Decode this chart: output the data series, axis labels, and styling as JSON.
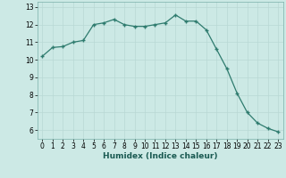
{
  "xlabel": "Humidex (Indice chaleur)",
  "x": [
    0,
    1,
    2,
    3,
    4,
    5,
    6,
    7,
    8,
    9,
    10,
    11,
    12,
    13,
    14,
    15,
    16,
    17,
    18,
    19,
    20,
    21,
    22,
    23
  ],
  "y": [
    10.2,
    10.7,
    10.75,
    11.0,
    11.1,
    12.0,
    12.1,
    12.3,
    12.0,
    11.9,
    11.9,
    12.0,
    12.1,
    12.55,
    12.2,
    12.2,
    11.7,
    10.6,
    9.5,
    8.1,
    7.0,
    6.4,
    6.1,
    5.9
  ],
  "ylim": [
    5.5,
    13.3
  ],
  "yticks": [
    6,
    7,
    8,
    9,
    10,
    11,
    12,
    13
  ],
  "xticks": [
    0,
    1,
    2,
    3,
    4,
    5,
    6,
    7,
    8,
    9,
    10,
    11,
    12,
    13,
    14,
    15,
    16,
    17,
    18,
    19,
    20,
    21,
    22,
    23
  ],
  "line_color": "#2e7b6e",
  "bg_color": "#cce9e5",
  "grid_color": "#b8d8d4",
  "tick_label_fontsize": 5.5,
  "xlabel_fontsize": 6.5,
  "marker": "+",
  "marker_size": 3.5,
  "linewidth": 0.9
}
